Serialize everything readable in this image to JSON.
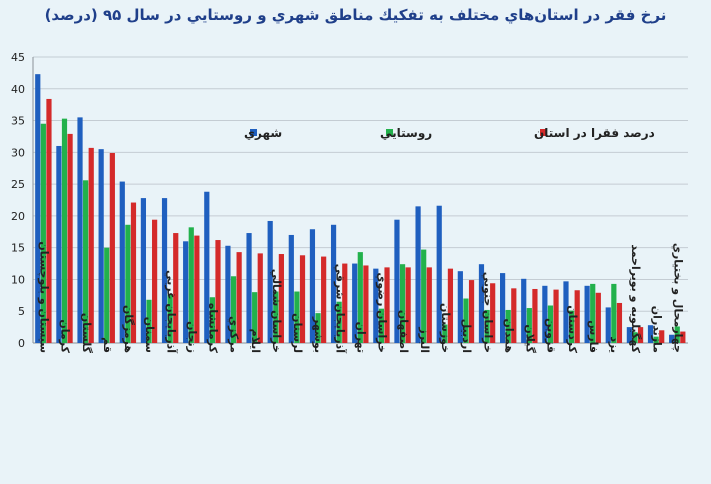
{
  "colors": {
    "background": "#e9f3f8",
    "title": "#1f3f8a",
    "urban": "#1f5fbf",
    "rural": "#22b14c",
    "province": "#d42a2a",
    "grid": "#c4ccd3",
    "axis_text": "#222222"
  },
  "chart_data": {
    "type": "bar",
    "title": "نرخ فقر در استان‌هاي مختلف به تفكيك مناطق شهري و روستايي در سال ۹۵ (درصد)",
    "xlabel": "",
    "ylabel": "",
    "ylim": [
      0,
      45
    ],
    "yticks": [
      "0",
      "5",
      "10",
      "15",
      "20",
      "25",
      "30",
      "35",
      "40",
      "45"
    ],
    "grid": "horizontal",
    "legend_position": "top-center",
    "categories": [
      "سيستان و بلوچستان",
      "كرمان",
      "گلستان",
      "قم",
      "هرمزگان",
      "سمنان",
      "آذربايجان غربي",
      "زنجان",
      "كرمانشاه",
      "مركزي",
      "ايلام",
      "خراسان شمالي",
      "لرستان",
      "بوشهر",
      "آذربايجان شرقي",
      "تهران",
      "خراسان رضوي",
      "اصفهان",
      "البرز",
      "خوزستان",
      "اردبيل",
      "خراسان جنوبي",
      "همدان",
      "گيلان",
      "قزوين",
      "كردستان",
      "فارس",
      "يزد",
      "كهگيلويه و بويراحمد",
      "مازندران",
      "چهارمحال و بختياري"
    ],
    "series": [
      {
        "name": "شهري",
        "color": "#1f5fbf",
        "values": [
          42.3,
          31.0,
          35.5,
          30.5,
          25.4,
          22.8,
          22.8,
          16.0,
          23.8,
          15.3,
          17.3,
          19.2,
          17.0,
          17.9,
          18.6,
          12.5,
          11.7,
          19.4,
          21.5,
          21.6,
          11.3,
          12.4,
          11.0,
          10.1,
          9.0,
          9.7,
          9.0,
          5.6,
          2.5,
          2.8,
          1.3
        ]
      },
      {
        "name": "روستايي",
        "color": "#22b14c",
        "values": [
          34.5,
          35.3,
          25.6,
          15.0,
          18.6,
          6.8,
          7.6,
          18.2,
          7.2,
          10.5,
          8.0,
          8.1,
          8.1,
          4.7,
          6.5,
          14.3,
          5.4,
          12.4,
          14.7,
          2.9,
          7.0,
          5.2,
          5.2,
          5.5,
          5.9,
          5.1,
          9.3,
          9.3,
          1.7,
          1.0,
          2.6
        ]
      },
      {
        "name": "درصد فقرا در استان",
        "color": "#d42a2a",
        "values": [
          38.4,
          32.9,
          30.7,
          29.9,
          22.1,
          19.4,
          17.3,
          16.9,
          16.2,
          14.3,
          14.1,
          14.0,
          13.8,
          13.6,
          12.5,
          12.2,
          11.9,
          11.9,
          11.9,
          11.7,
          9.9,
          9.4,
          8.6,
          8.5,
          8.4,
          8.3,
          7.9,
          6.3,
          2.5,
          2.0,
          1.8
        ]
      }
    ]
  }
}
